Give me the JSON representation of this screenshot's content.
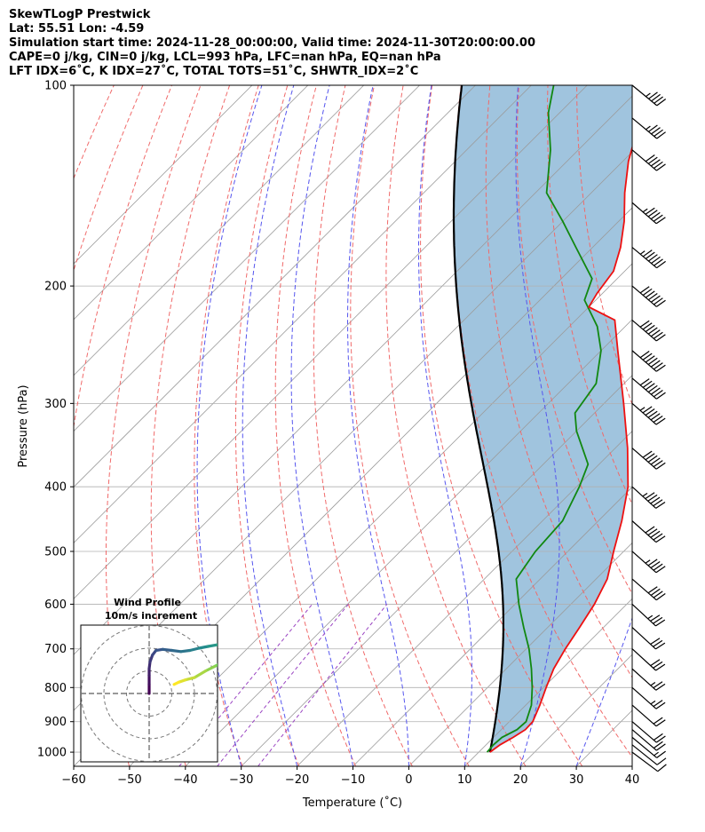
{
  "header": {
    "title": "SkewTLogP Prestwick",
    "location": "Lat: 55.51   Lon: -4.59",
    "times": "Simulation start time: 2024-11-28_00:00:00, Valid time: 2024-11-30T20:00:00.00",
    "indices1": "CAPE=0 j/kg, CIN=0 j/kg, LCL=993 hPa, LFC=nan hPa, EQ=nan hPa",
    "indices2": "LFT IDX=6˚C, K IDX=27˚C, TOTAL TOTS=51˚C, SHWTR_IDX=2˚C"
  },
  "colors": {
    "temperature": "#ee1111",
    "dewpoint": "#118811",
    "parcel": "#000000",
    "fill": "#a0c4de",
    "dry_adiabat": "#f06a6a",
    "moist_adiabat": "#5555ee",
    "mixing_ratio": "#9a44c2",
    "isotherm": "#9b9b9b"
  },
  "chart_data": {
    "type": "skewt-logp",
    "xlabel": "Temperature (˚C)",
    "ylabel": "Pressure (hPa)",
    "xlim": [
      -60,
      40
    ],
    "ylim": [
      1050,
      100
    ],
    "x_ticks": [
      "−60",
      "−50",
      "−40",
      "−30",
      "−20",
      "−10",
      "0",
      "10",
      "20",
      "30",
      "40"
    ],
    "y_ticks": [
      "100",
      "200",
      "300",
      "400",
      "500",
      "600",
      "700",
      "800",
      "900",
      "1000"
    ],
    "temperature": [
      [
        1000,
        12.0
      ],
      [
        975,
        12.5
      ],
      [
        950,
        13.5
      ],
      [
        925,
        14.3
      ],
      [
        900,
        14.2
      ],
      [
        850,
        12.5
      ],
      [
        800,
        10.5
      ],
      [
        750,
        8.5
      ],
      [
        700,
        7.0
      ],
      [
        650,
        5.7
      ],
      [
        600,
        4.2
      ],
      [
        550,
        2.0
      ],
      [
        500,
        -1.8
      ],
      [
        450,
        -5.8
      ],
      [
        400,
        -10.8
      ],
      [
        350,
        -17.8
      ],
      [
        300,
        -26.5
      ],
      [
        250,
        -37.0
      ],
      [
        225,
        -43.0
      ],
      [
        215,
        -50.0
      ],
      [
        205,
        -51.0
      ],
      [
        190,
        -52.0
      ],
      [
        175,
        -55.0
      ],
      [
        160,
        -59.0
      ],
      [
        145,
        -64.0
      ],
      [
        130,
        -69.0
      ],
      [
        120,
        -72.0
      ],
      [
        110,
        -76.0
      ],
      [
        100,
        -79.0
      ]
    ],
    "dewpoint": [
      [
        1000,
        11.5
      ],
      [
        975,
        11.3
      ],
      [
        950,
        11.5
      ],
      [
        925,
        12.8
      ],
      [
        900,
        13.0
      ],
      [
        850,
        11.0
      ],
      [
        800,
        8.0
      ],
      [
        750,
        4.5
      ],
      [
        700,
        0.5
      ],
      [
        650,
        -4.3
      ],
      [
        600,
        -9.3
      ],
      [
        550,
        -14.3
      ],
      [
        500,
        -15.8
      ],
      [
        450,
        -16.4
      ],
      [
        400,
        -19.5
      ],
      [
        370,
        -22.0
      ],
      [
        330,
        -30.0
      ],
      [
        310,
        -33.5
      ],
      [
        280,
        -35.0
      ],
      [
        250,
        -40.0
      ],
      [
        230,
        -45.0
      ],
      [
        210,
        -52.0
      ],
      [
        195,
        -54.5
      ],
      [
        175,
        -63.0
      ],
      [
        160,
        -70.0
      ],
      [
        145,
        -78.0
      ],
      [
        125,
        -85.0
      ],
      [
        110,
        -92.0
      ],
      [
        100,
        -96.0
      ]
    ],
    "parcel_curve": "moist adiabat from the surface (1000 hPa, 12˚C)",
    "isotherm_spacing_c": 10,
    "dry_adiabats_theta_k": [
      190,
      200,
      210,
      220,
      230,
      240,
      250,
      260,
      270,
      280,
      290,
      300,
      310,
      320,
      330,
      340,
      350
    ],
    "moist_adiabats_start_c": [
      -30,
      -20,
      -10,
      0,
      10,
      20,
      30
    ],
    "mixing_ratio_lines": "dashed purple lines of constant mixing ratio",
    "wind_barbs": [
      {
        "p": 1000,
        "u": -4,
        "v": 3
      },
      {
        "p": 975,
        "u": -5,
        "v": 4
      },
      {
        "p": 950,
        "u": -6,
        "v": 5
      },
      {
        "p": 925,
        "u": -7,
        "v": 6
      },
      {
        "p": 900,
        "u": -7,
        "v": 6
      },
      {
        "p": 850,
        "u": -8,
        "v": 7
      },
      {
        "p": 800,
        "u": -9,
        "v": 8
      },
      {
        "p": 750,
        "u": -10,
        "v": 9
      },
      {
        "p": 700,
        "u": -11,
        "v": 10
      },
      {
        "p": 650,
        "u": -12,
        "v": 11
      },
      {
        "p": 600,
        "u": -13,
        "v": 12
      },
      {
        "p": 550,
        "u": -15,
        "v": 13
      },
      {
        "p": 500,
        "u": -17,
        "v": 15
      },
      {
        "p": 450,
        "u": -19,
        "v": 17
      },
      {
        "p": 400,
        "u": -21,
        "v": 19
      },
      {
        "p": 350,
        "u": -23,
        "v": 20
      },
      {
        "p": 300,
        "u": -25,
        "v": 22
      },
      {
        "p": 275,
        "u": -27,
        "v": 23
      },
      {
        "p": 250,
        "u": -28,
        "v": 24
      },
      {
        "p": 225,
        "u": -28,
        "v": 24
      },
      {
        "p": 200,
        "u": -27,
        "v": 23
      },
      {
        "p": 175,
        "u": -25,
        "v": 21
      },
      {
        "p": 150,
        "u": -22,
        "v": 19
      },
      {
        "p": 125,
        "u": -20,
        "v": 17
      },
      {
        "p": 112,
        "u": -18,
        "v": 15
      },
      {
        "p": 100,
        "u": -17,
        "v": 14
      }
    ],
    "hodograph": {
      "title": "Wind Profile",
      "subtitle": "10m/s increment",
      "rings_ms": [
        10,
        20,
        30
      ],
      "points_uv": [
        [
          0,
          0
        ],
        [
          0,
          4
        ],
        [
          0,
          8
        ],
        [
          0,
          11
        ],
        [
          0.4,
          14
        ],
        [
          1.5,
          17
        ],
        [
          3,
          19
        ],
        [
          6,
          19.5
        ],
        [
          10,
          19
        ],
        [
          14,
          18.5
        ],
        [
          18,
          19
        ],
        [
          22,
          20
        ],
        [
          26,
          20.8
        ],
        [
          30,
          21.5
        ],
        [
          33,
          22
        ],
        [
          35,
          21
        ],
        [
          38,
          21
        ],
        [
          36,
          16
        ],
        [
          33,
          14
        ],
        [
          29,
          12
        ],
        [
          25,
          10
        ],
        [
          20,
          7
        ],
        [
          16,
          6
        ],
        [
          13,
          5
        ],
        [
          11,
          4
        ]
      ]
    }
  }
}
